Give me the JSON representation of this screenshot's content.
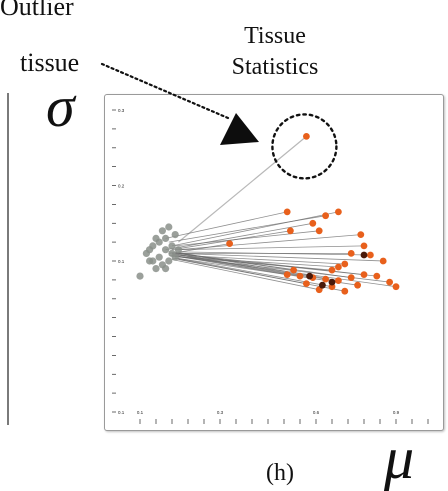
{
  "annotation": {
    "line1": "Outlier",
    "line2": "tissue"
  },
  "title": {
    "line1": "Tissue",
    "line2": "Statistics"
  },
  "axes": {
    "y_symbol": "σ",
    "x_symbol": "μ"
  },
  "panel_label": "(h)",
  "colors": {
    "gray_points": "#8a8f8a",
    "orange_points": "#e8601c",
    "dark_points": "#4a1a0a",
    "links": "#6a6a6a",
    "frame": "#9a9a9a"
  },
  "chart_data": {
    "type": "scatter",
    "xlabel": "μ",
    "ylabel": "σ",
    "xlim": [
      0.1,
      1.0
    ],
    "ylim": [
      -0.1,
      0.3
    ],
    "x_ticks": [
      "0.1",
      "0.3",
      "0.6",
      "0.9"
    ],
    "y_ticks": [
      "0.3",
      "0.2",
      "0.1",
      "0.1"
    ],
    "grid": false,
    "legend": "none",
    "series": [
      {
        "points": [
          [
            0.1,
            0.08
          ],
          [
            0.12,
            0.11
          ],
          [
            0.13,
            0.1
          ],
          [
            0.14,
            0.12
          ],
          [
            0.15,
            0.09
          ],
          [
            0.16,
            0.105
          ],
          [
            0.16,
            0.125
          ],
          [
            0.17,
            0.095
          ],
          [
            0.18,
            0.115
          ],
          [
            0.18,
            0.13
          ],
          [
            0.19,
            0.1
          ],
          [
            0.2,
            0.12
          ],
          [
            0.2,
            0.11
          ],
          [
            0.21,
            0.135
          ],
          [
            0.22,
            0.115
          ],
          [
            0.15,
            0.13
          ],
          [
            0.17,
            0.14
          ],
          [
            0.19,
            0.145
          ],
          [
            0.14,
            0.1
          ],
          [
            0.21,
            0.105
          ],
          [
            0.13,
            0.115
          ],
          [
            0.18,
            0.09
          ]
        ]
      },
      {
        "points": [
          [
            0.62,
            0.265
          ],
          [
            0.56,
            0.165
          ],
          [
            0.72,
            0.165
          ],
          [
            0.68,
            0.16
          ],
          [
            0.64,
            0.15
          ],
          [
            0.57,
            0.14
          ],
          [
            0.66,
            0.14
          ],
          [
            0.79,
            0.135
          ],
          [
            0.8,
            0.12
          ],
          [
            0.38,
            0.123
          ],
          [
            0.82,
            0.108
          ],
          [
            0.76,
            0.11
          ],
          [
            0.86,
            0.1
          ],
          [
            0.74,
            0.096
          ],
          [
            0.72,
            0.092
          ],
          [
            0.7,
            0.088
          ],
          [
            0.56,
            0.082
          ],
          [
            0.6,
            0.08
          ],
          [
            0.64,
            0.078
          ],
          [
            0.68,
            0.076
          ],
          [
            0.72,
            0.074
          ],
          [
            0.76,
            0.078
          ],
          [
            0.8,
            0.082
          ],
          [
            0.84,
            0.08
          ],
          [
            0.88,
            0.072
          ],
          [
            0.9,
            0.066
          ],
          [
            0.62,
            0.07
          ],
          [
            0.7,
            0.066
          ],
          [
            0.74,
            0.06
          ],
          [
            0.66,
            0.062
          ],
          [
            0.78,
            0.068
          ],
          [
            0.58,
            0.088
          ]
        ]
      },
      {
        "points": [
          [
            0.7,
            0.072
          ],
          [
            0.8,
            0.108
          ],
          [
            0.63,
            0.08
          ],
          [
            0.67,
            0.068
          ]
        ]
      }
    ],
    "links": [
      [
        0.22,
        0.125,
        0.62,
        0.265
      ],
      [
        0.18,
        0.13,
        0.56,
        0.165
      ],
      [
        0.2,
        0.12,
        0.72,
        0.165
      ],
      [
        0.19,
        0.125,
        0.68,
        0.16
      ],
      [
        0.18,
        0.115,
        0.64,
        0.15
      ],
      [
        0.2,
        0.115,
        0.57,
        0.14
      ],
      [
        0.21,
        0.12,
        0.66,
        0.14
      ],
      [
        0.22,
        0.115,
        0.79,
        0.135
      ],
      [
        0.21,
        0.115,
        0.8,
        0.12
      ],
      [
        0.2,
        0.11,
        0.38,
        0.123
      ],
      [
        0.22,
        0.112,
        0.82,
        0.108
      ],
      [
        0.21,
        0.11,
        0.76,
        0.11
      ],
      [
        0.22,
        0.11,
        0.86,
        0.1
      ],
      [
        0.21,
        0.108,
        0.74,
        0.096
      ],
      [
        0.2,
        0.106,
        0.72,
        0.092
      ],
      [
        0.21,
        0.106,
        0.7,
        0.088
      ],
      [
        0.19,
        0.108,
        0.56,
        0.082
      ],
      [
        0.2,
        0.108,
        0.6,
        0.08
      ],
      [
        0.19,
        0.11,
        0.64,
        0.078
      ],
      [
        0.2,
        0.11,
        0.68,
        0.076
      ],
      [
        0.21,
        0.112,
        0.72,
        0.074
      ],
      [
        0.22,
        0.11,
        0.76,
        0.078
      ],
      [
        0.21,
        0.11,
        0.8,
        0.082
      ],
      [
        0.22,
        0.108,
        0.84,
        0.08
      ],
      [
        0.21,
        0.106,
        0.88,
        0.072
      ],
      [
        0.22,
        0.106,
        0.9,
        0.066
      ],
      [
        0.2,
        0.104,
        0.62,
        0.07
      ],
      [
        0.21,
        0.104,
        0.7,
        0.066
      ],
      [
        0.22,
        0.102,
        0.74,
        0.06
      ],
      [
        0.2,
        0.102,
        0.66,
        0.062
      ],
      [
        0.21,
        0.104,
        0.78,
        0.068
      ],
      [
        0.19,
        0.112,
        0.58,
        0.088
      ]
    ]
  }
}
